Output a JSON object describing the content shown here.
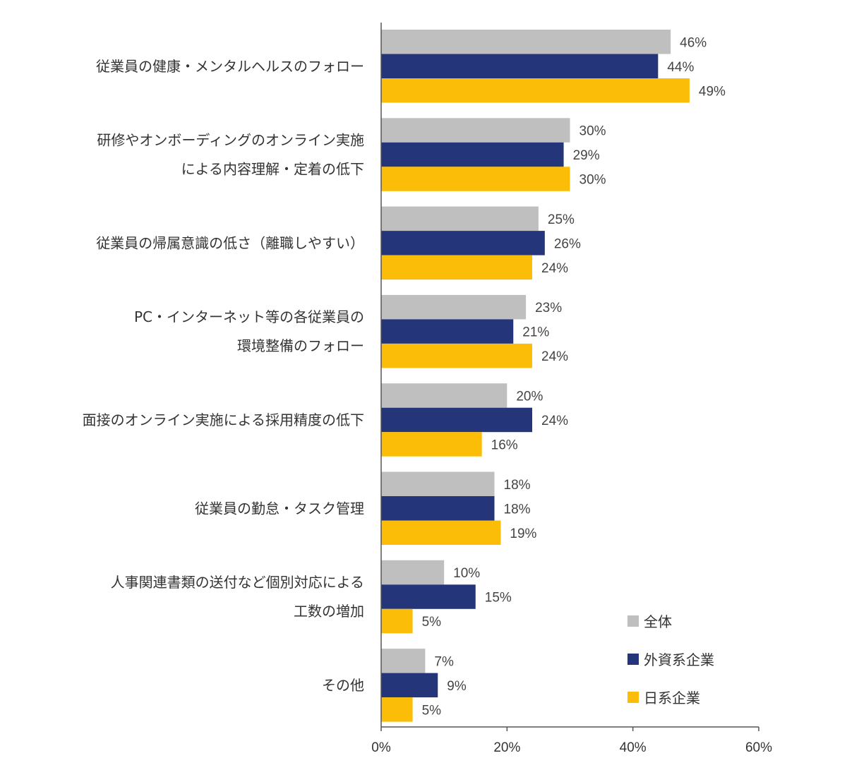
{
  "chart_data": {
    "type": "bar",
    "orientation": "horizontal",
    "categories": [
      [
        "従業員の健康・メンタルヘルスのフォロー"
      ],
      [
        "研修やオンボーディングのオンライン実施",
        "による内容理解・定着の低下"
      ],
      [
        "従業員の帰属意識の低さ（離職しやすい）"
      ],
      [
        "PC・インターネット等の各従業員の",
        "環境整備のフォロー"
      ],
      [
        "面接のオンライン実施による採用精度の低下"
      ],
      [
        "従業員の勤怠・タスク管理"
      ],
      [
        "人事関連書類の送付など個別対応による",
        "工数の増加"
      ],
      [
        "その他"
      ]
    ],
    "series": [
      {
        "name": "全体",
        "color": "#bfbfbf",
        "values": [
          46,
          30,
          25,
          23,
          20,
          18,
          10,
          7
        ]
      },
      {
        "name": "外資系企業",
        "color": "#24357a",
        "values": [
          44,
          29,
          26,
          21,
          24,
          18,
          15,
          9
        ]
      },
      {
        "name": "日系企業",
        "color": "#fbbd08",
        "values": [
          49,
          30,
          24,
          24,
          16,
          19,
          5,
          5
        ]
      }
    ],
    "value_suffix": "%",
    "xlim": [
      0,
      60
    ],
    "xticks": [
      0,
      20,
      40,
      60
    ],
    "xtick_labels": [
      "0%",
      "20%",
      "40%",
      "60%"
    ],
    "grid": false,
    "legend_position": "bottom-right"
  }
}
